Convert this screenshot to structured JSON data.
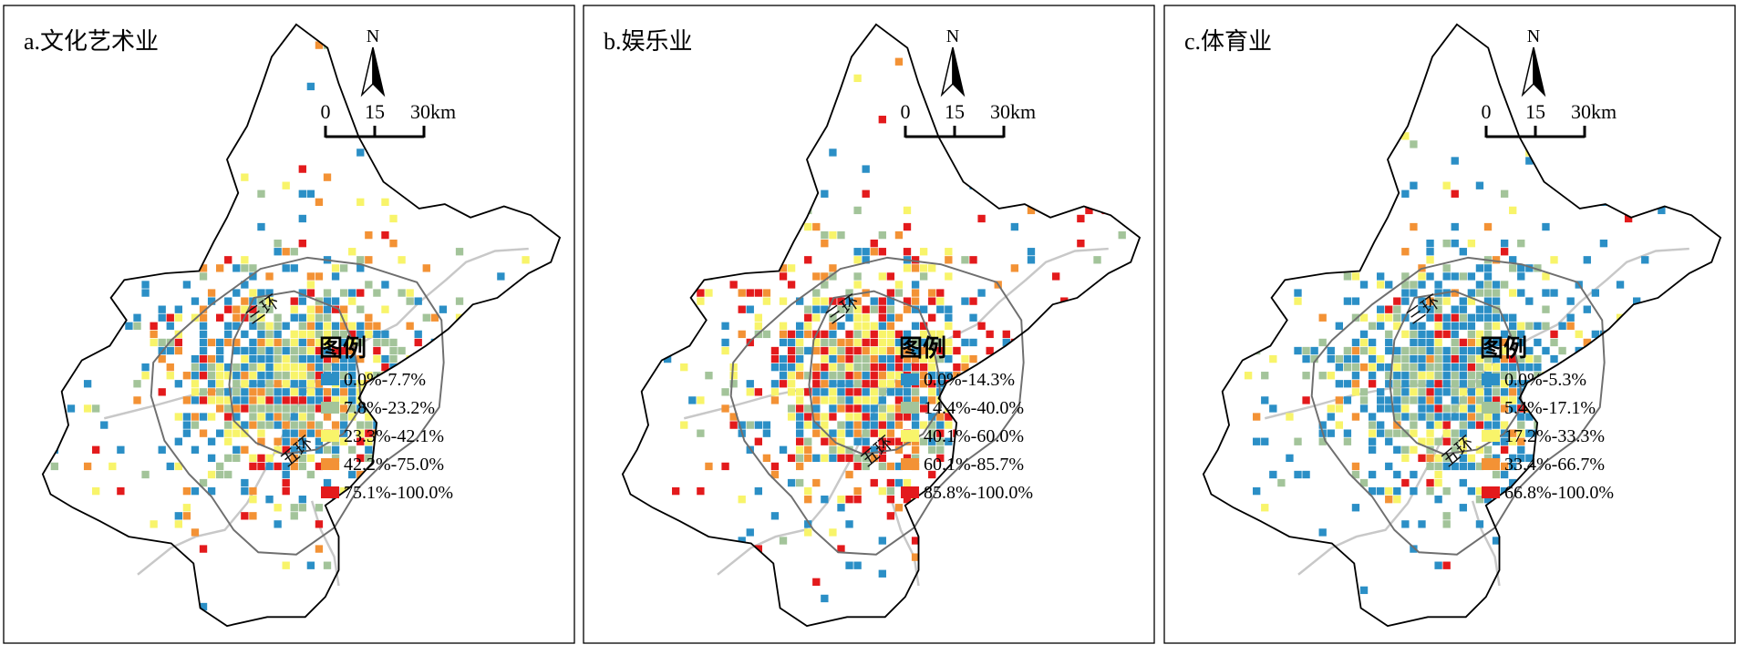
{
  "panels": [
    {
      "key": "a",
      "title": "a.文化艺术业",
      "legend_title": "图例",
      "legend": [
        {
          "label": "0.0%-7.7%",
          "color": "#2b8fc6"
        },
        {
          "label": "7.8%-23.2%",
          "color": "#a3c49a"
        },
        {
          "label": "23.3%-42.1%",
          "color": "#f8f46a"
        },
        {
          "label": "42.2%-75.0%",
          "color": "#f39235"
        },
        {
          "label": "75.1%-100.0%",
          "color": "#e31a1c"
        }
      ],
      "weights": [
        0.3,
        0.22,
        0.22,
        0.16,
        0.1
      ]
    },
    {
      "key": "b",
      "title": "b.娱乐业",
      "legend_title": "图例",
      "legend": [
        {
          "label": "0.0%-14.3%",
          "color": "#2b8fc6"
        },
        {
          "label": "14.4%-40.0%",
          "color": "#a3c49a"
        },
        {
          "label": "40.1%-60.0%",
          "color": "#f8f46a"
        },
        {
          "label": "60.1%-85.7%",
          "color": "#f39235"
        },
        {
          "label": "85.8%-100.0%",
          "color": "#e31a1c"
        }
      ],
      "weights": [
        0.26,
        0.14,
        0.2,
        0.16,
        0.24
      ]
    },
    {
      "key": "c",
      "title": "c.体育业",
      "legend_title": "图例",
      "legend": [
        {
          "label": "0.0%-5.3%",
          "color": "#2b8fc6"
        },
        {
          "label": "5.4%-17.1%",
          "color": "#a3c49a"
        },
        {
          "label": "17.2%-33.3%",
          "color": "#f8f46a"
        },
        {
          "label": "33.4%-66.7%",
          "color": "#f39235"
        },
        {
          "label": "66.8%-100.0%",
          "color": "#e31a1c"
        }
      ],
      "weights": [
        0.46,
        0.26,
        0.18,
        0.05,
        0.05
      ]
    }
  ],
  "north_label": "N",
  "scale_ticks": [
    "0",
    "15",
    "30km"
  ],
  "ring_labels": {
    "third": "三环",
    "fifth": "五环"
  },
  "colors": {
    "boundary": "#000000",
    "ring": "#6f6f6f",
    "river": "#c8c8c8",
    "frame": "#000000"
  }
}
